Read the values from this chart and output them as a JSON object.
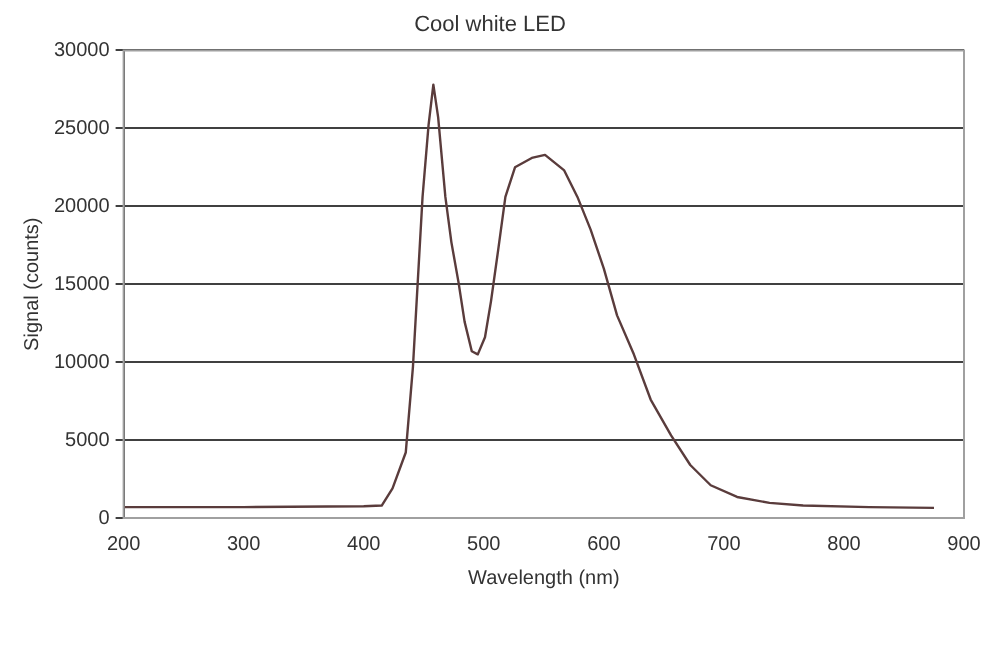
{
  "chart_data": {
    "type": "line",
    "title": "Cool white LED",
    "xlabel": "Wavelength (nm)",
    "ylabel": "Signal (counts)",
    "xlim": [
      200,
      900
    ],
    "xticks": [
      200,
      300,
      400,
      500,
      600,
      700,
      800,
      900
    ],
    "ylim": [
      0,
      30000
    ],
    "yticks": [
      0,
      5000,
      10000,
      15000,
      20000,
      25000,
      30000
    ],
    "grid": "y",
    "legend": false,
    "marker": "none",
    "line_style": "solid",
    "series": [
      {
        "color": "#5a3c3c",
        "x": [
          200,
          300,
          400,
          415,
          424,
          435,
          441,
          449,
          454,
          458,
          462,
          468,
          473,
          479,
          484,
          490,
          495,
          501,
          506,
          512,
          518,
          526,
          540,
          551,
          567,
          578,
          589,
          600,
          611,
          625,
          639,
          656,
          672,
          689,
          711,
          738,
          766,
          821,
          875
        ],
        "values": [
          700,
          700,
          750,
          800,
          1900,
          4200,
          9700,
          20600,
          25200,
          27800,
          25700,
          20600,
          17700,
          15100,
          12600,
          10700,
          10500,
          11600,
          13900,
          17200,
          20600,
          22500,
          23100,
          23300,
          22300,
          20600,
          18500,
          16000,
          13000,
          10500,
          7600,
          5300,
          3400,
          2100,
          1350,
          970,
          800,
          700,
          650
        ]
      }
    ]
  }
}
